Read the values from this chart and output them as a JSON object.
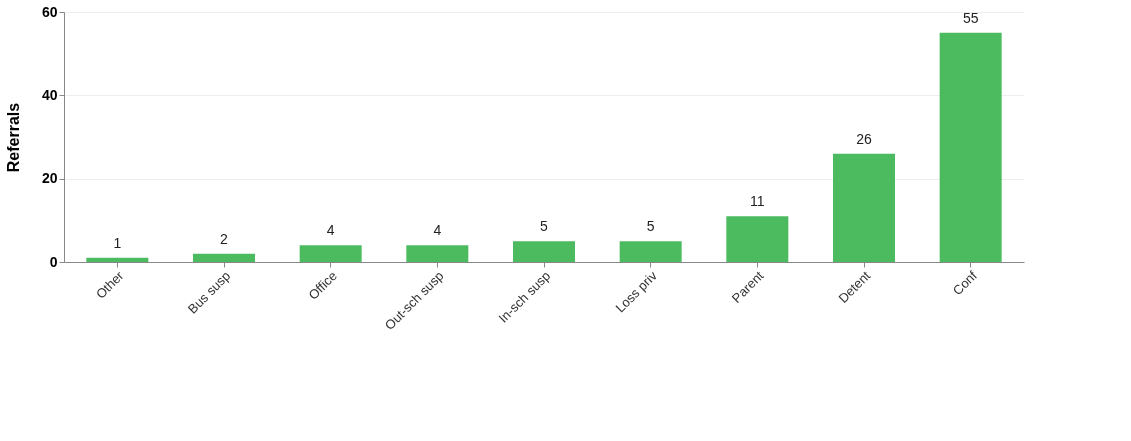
{
  "chart_data": {
    "type": "bar",
    "ylabel": "Referrals",
    "categories": [
      "Other",
      "Bus susp",
      "Office",
      "Out-sch susp",
      "In-sch susp",
      "Loss priv",
      "Parent",
      "Detent",
      "Conf"
    ],
    "values": [
      1,
      2,
      4,
      4,
      5,
      5,
      11,
      26,
      55
    ],
    "color": "#4cbb5f",
    "ylim": [
      0,
      60
    ],
    "yticks": [
      0,
      20,
      40,
      60
    ],
    "grid": "y",
    "data_labels": true
  }
}
